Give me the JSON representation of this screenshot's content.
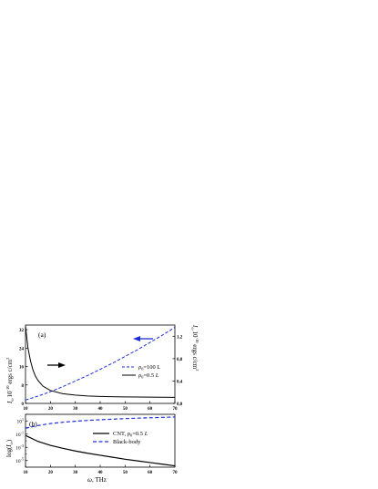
{
  "chart_data": [
    {
      "type": "line",
      "panel_label": "(a)",
      "xlim": [
        10,
        70
      ],
      "x_ticks": [
        10,
        20,
        30,
        40,
        50,
        60,
        70
      ],
      "left_axis": {
        "label_main": "I",
        "label_sub": "ω",
        "label_power": "10",
        "label_exp": "-10",
        "label_unit": " ergs c/cm",
        "label_unit_exp": "2",
        "ylim": [
          0,
          34
        ],
        "ticks": [
          0,
          8,
          16,
          24,
          32
        ]
      },
      "right_axis": {
        "label_main": "I",
        "label_sub": "ω",
        "label_power": "10",
        "label_exp": "-10",
        "label_unit": " ergs c/cm",
        "label_unit_exp": "2",
        "ylim": [
          0,
          1.4
        ],
        "ticks": [
          "0,0",
          "0,4",
          "0,8",
          "1,2"
        ],
        "tick_values": [
          0,
          0.4,
          0.8,
          1.2
        ]
      },
      "series": [
        {
          "name_prefix": "ρ",
          "name_sub": "0",
          "name_suffix": "=100 ",
          "name_unit": "L",
          "style": "dashed",
          "color": "#1f2fd6",
          "axis": "right",
          "x": [
            10,
            15,
            20,
            25,
            30,
            35,
            40,
            45,
            50,
            55,
            60,
            65,
            70
          ],
          "y": [
            0.06,
            0.13,
            0.21,
            0.3,
            0.4,
            0.5,
            0.61,
            0.72,
            0.84,
            0.96,
            1.09,
            1.22,
            1.36
          ]
        },
        {
          "name_prefix": "ρ",
          "name_sub": "0",
          "name_suffix": "=0.5 ",
          "name_unit": "L",
          "style": "solid",
          "color": "#000000",
          "axis": "left",
          "x": [
            10,
            11,
            12,
            13,
            14,
            15,
            17,
            20,
            25,
            30,
            35,
            40,
            50,
            60,
            70
          ],
          "y": [
            33.5,
            24.0,
            18.5,
            14.5,
            11.8,
            10.0,
            7.5,
            5.6,
            4.2,
            3.6,
            3.2,
            3.0,
            2.8,
            2.7,
            2.6
          ]
        }
      ],
      "arrows": [
        {
          "direction": "right",
          "color": "#000000"
        },
        {
          "direction": "left",
          "color": "#1f2fd6"
        }
      ]
    },
    {
      "type": "line",
      "panel_label": "(b)",
      "xlim": [
        10,
        70
      ],
      "x_ticks": [
        10,
        20,
        30,
        40,
        50,
        60,
        70
      ],
      "xlabel_main": "ω",
      "xlabel_unit": ", THz",
      "y_scale": "log",
      "ylabel_main": "log(",
      "ylabel_sub": "ω",
      "ylabel_end": ")",
      "ylim_exp": [
        -6,
        2
      ],
      "y_ticks": [
        {
          "exp": 1,
          "label_base": "10",
          "label_exp": "1"
        },
        {
          "exp": -1,
          "label_base": "10",
          "label_exp": "-1"
        },
        {
          "exp": -3,
          "label_base": "10",
          "label_exp": "-3"
        },
        {
          "exp": -5,
          "label_base": "10",
          "label_exp": "-5"
        }
      ],
      "series": [
        {
          "name_prefix": "CNT, ρ",
          "name_sub": "0",
          "name_suffix": "=0.5 ",
          "name_unit": "L",
          "style": "solid",
          "color": "#000000",
          "x": [
            10,
            15,
            20,
            25,
            30,
            35,
            40,
            45,
            50,
            55,
            60,
            65,
            70
          ],
          "log_y": [
            -1.2,
            -2.1,
            -2.7,
            -3.15,
            -3.55,
            -3.9,
            -4.2,
            -4.5,
            -4.8,
            -5.05,
            -5.3,
            -5.55,
            -5.8
          ]
        },
        {
          "name_prefix": "Black-body",
          "name_sub": "",
          "name_suffix": "",
          "name_unit": "",
          "style": "dashed",
          "color": "#1f2fd6",
          "x": [
            10,
            15,
            20,
            25,
            30,
            35,
            40,
            45,
            50,
            55,
            60,
            65,
            70
          ],
          "log_y": [
            -0.1,
            0.3,
            0.6,
            0.8,
            0.95,
            1.08,
            1.18,
            1.27,
            1.35,
            1.42,
            1.48,
            1.54,
            1.6
          ]
        }
      ]
    }
  ]
}
